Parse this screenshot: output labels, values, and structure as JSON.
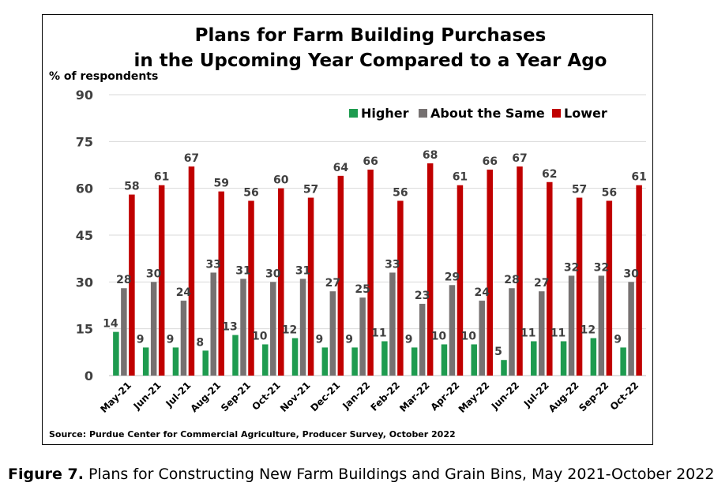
{
  "chart_data": {
    "type": "bar",
    "title_line1": "Plans for Farm Building Purchases",
    "title_line2": "in the Upcoming Year Compared to a Year Ago",
    "ylabel": "% of respondents",
    "ylim": [
      0,
      90
    ],
    "yticks": [
      0,
      15,
      30,
      45,
      60,
      75,
      90
    ],
    "grid": true,
    "legend_position": "top-right",
    "categories": [
      "May-21",
      "Jun-21",
      "Jul-21",
      "Aug-21",
      "Sep-21",
      "Oct-21",
      "Nov-21",
      "Dec-21",
      "Jan-22",
      "Feb-22",
      "Mar-22",
      "Apr-22",
      "May-22",
      "Jun-22",
      "Jul-22",
      "Aug-22",
      "Sep-22",
      "Oct-22"
    ],
    "series": [
      {
        "name": "Higher",
        "color": "#1e9b4f",
        "values": [
          14,
          9,
          9,
          8,
          13,
          10,
          12,
          9,
          9,
          11,
          9,
          10,
          10,
          5,
          11,
          11,
          12,
          9
        ]
      },
      {
        "name": "About the Same",
        "color": "#767171",
        "values": [
          28,
          30,
          24,
          33,
          31,
          30,
          31,
          27,
          25,
          33,
          23,
          29,
          24,
          28,
          27,
          32,
          32,
          30
        ]
      },
      {
        "name": "Lower",
        "color": "#c00000",
        "values": [
          58,
          61,
          67,
          59,
          56,
          60,
          57,
          64,
          66,
          56,
          68,
          61,
          66,
          67,
          62,
          57,
          56,
          61
        ]
      }
    ],
    "source": "Source: Purdue Center for Commercial Agriculture, Producer Survey, October 2022"
  },
  "caption": {
    "label": "Figure 7.",
    "text": " Plans for Constructing New Farm Buildings and Grain Bins, May 2021-October 2022"
  }
}
